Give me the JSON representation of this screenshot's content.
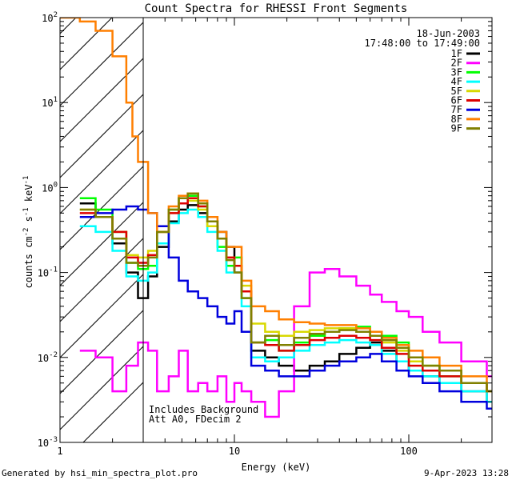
{
  "chart_data": {
    "type": "line",
    "title": "Count Spectra for RHESSI Front Segments",
    "xlabel": "Energy (keV)",
    "ylabel": {
      "base": "counts cm",
      "exp1": "-2",
      "mid": " s",
      "exp2": "-1",
      "unit": " keV",
      "exp3": "-1"
    },
    "xscale": "log",
    "yscale": "log",
    "xlim": [
      1,
      300
    ],
    "ylim": [
      0.001,
      100
    ],
    "x_ticks": [
      {
        "value": 1,
        "label": "1"
      },
      {
        "value": 10,
        "label": "10"
      },
      {
        "value": 100,
        "label": "100"
      }
    ],
    "y_ticks": [
      {
        "value": 0.001,
        "mant": "10",
        "exp": "-3"
      },
      {
        "value": 0.01,
        "mant": "10",
        "exp": "-2"
      },
      {
        "value": 0.1,
        "mant": "10",
        "exp": "-1"
      },
      {
        "value": 1,
        "mant": "10",
        "exp": "0"
      },
      {
        "value": 10,
        "mant": "10",
        "exp": "1"
      },
      {
        "value": 100,
        "mant": "10",
        "exp": "2"
      }
    ],
    "date": "18-Jun-2003",
    "time_range": "17:48:00 to 17:49:00",
    "note_lines": [
      "Includes Background",
      "Att A0, FDecim 2"
    ],
    "shaded_region_keV": [
      1,
      3
    ],
    "legend_position": "top-right",
    "series": [
      {
        "name": "1F",
        "color": "#000000",
        "energy_keV": [
          1.3,
          1.6,
          2.0,
          2.4,
          2.8,
          3.2,
          3.6,
          4.2,
          4.8,
          5.4,
          6.2,
          7.0,
          8.0,
          9.0,
          10.0,
          11.0,
          12.5,
          15,
          18,
          22,
          27,
          33,
          40,
          50,
          60,
          70,
          85,
          100,
          120,
          150,
          200,
          280
        ],
        "counts": [
          0.65,
          0.45,
          0.22,
          0.1,
          0.05,
          0.09,
          0.2,
          0.4,
          0.55,
          0.62,
          0.5,
          0.35,
          0.3,
          0.2,
          0.1,
          0.06,
          0.012,
          0.01,
          0.008,
          0.007,
          0.008,
          0.009,
          0.011,
          0.013,
          0.015,
          0.012,
          0.009,
          0.007,
          0.006,
          0.005,
          0.004,
          0.003
        ]
      },
      {
        "name": "2F",
        "color": "#ff00ff",
        "energy_keV": [
          1.3,
          1.6,
          2.0,
          2.4,
          2.8,
          3.2,
          3.6,
          4.2,
          4.8,
          5.4,
          6.2,
          7.0,
          8.0,
          9.0,
          10.0,
          11.0,
          12.5,
          15,
          18,
          22,
          27,
          33,
          40,
          50,
          60,
          70,
          85,
          100,
          120,
          150,
          200,
          280
        ],
        "counts": [
          0.012,
          0.01,
          0.004,
          0.008,
          0.015,
          0.012,
          0.004,
          0.006,
          0.012,
          0.004,
          0.005,
          0.004,
          0.006,
          0.003,
          0.005,
          0.004,
          0.003,
          0.002,
          0.004,
          0.04,
          0.1,
          0.11,
          0.09,
          0.07,
          0.055,
          0.045,
          0.035,
          0.03,
          0.02,
          0.015,
          0.009,
          0.006
        ]
      },
      {
        "name": "3F",
        "color": "#00ff00",
        "energy_keV": [
          1.3,
          1.6,
          2.0,
          2.4,
          2.8,
          3.2,
          3.6,
          4.2,
          4.8,
          5.4,
          6.2,
          7.0,
          8.0,
          9.0,
          10.0,
          11.0,
          12.5,
          15,
          18,
          22,
          27,
          33,
          40,
          50,
          60,
          70,
          85,
          100,
          120,
          150,
          200,
          280
        ],
        "counts": [
          0.75,
          0.55,
          0.3,
          0.13,
          0.11,
          0.12,
          0.3,
          0.55,
          0.75,
          0.8,
          0.6,
          0.35,
          0.2,
          0.12,
          0.15,
          0.05,
          0.015,
          0.016,
          0.012,
          0.015,
          0.018,
          0.02,
          0.022,
          0.023,
          0.02,
          0.018,
          0.015,
          0.01,
          0.008,
          0.006,
          0.005,
          0.004
        ]
      },
      {
        "name": "4F",
        "color": "#00ffff",
        "energy_keV": [
          1.3,
          1.6,
          2.0,
          2.4,
          2.8,
          3.2,
          3.6,
          4.2,
          4.8,
          5.4,
          6.2,
          7.0,
          8.0,
          9.0,
          10.0,
          11.0,
          12.5,
          15,
          18,
          22,
          27,
          33,
          40,
          50,
          60,
          70,
          85,
          100,
          120,
          150,
          200,
          280
        ],
        "counts": [
          0.35,
          0.3,
          0.18,
          0.09,
          0.08,
          0.1,
          0.22,
          0.38,
          0.5,
          0.55,
          0.45,
          0.3,
          0.18,
          0.1,
          0.1,
          0.04,
          0.01,
          0.009,
          0.01,
          0.012,
          0.014,
          0.015,
          0.016,
          0.015,
          0.014,
          0.011,
          0.009,
          0.007,
          0.006,
          0.005,
          0.004,
          0.003
        ]
      },
      {
        "name": "5F",
        "color": "#d8d800",
        "energy_keV": [
          1.3,
          1.6,
          2.0,
          2.4,
          2.8,
          3.2,
          3.6,
          4.2,
          4.8,
          5.4,
          6.2,
          7.0,
          8.0,
          9.0,
          10.0,
          11.0,
          12.5,
          15,
          18,
          22,
          27,
          33,
          40,
          50,
          60,
          70,
          85,
          100,
          120,
          150,
          200,
          280
        ],
        "counts": [
          0.55,
          0.45,
          0.3,
          0.16,
          0.15,
          0.18,
          0.3,
          0.5,
          0.65,
          0.7,
          0.55,
          0.35,
          0.25,
          0.15,
          0.12,
          0.07,
          0.025,
          0.02,
          0.018,
          0.02,
          0.021,
          0.022,
          0.022,
          0.02,
          0.018,
          0.015,
          0.012,
          0.009,
          0.008,
          0.007,
          0.005,
          0.004
        ]
      },
      {
        "name": "6F",
        "color": "#dd0000",
        "energy_keV": [
          1.3,
          1.6,
          2.0,
          2.4,
          2.8,
          3.2,
          3.6,
          4.2,
          4.8,
          5.4,
          6.2,
          7.0,
          8.0,
          9.0,
          10.0,
          11.0,
          12.5,
          15,
          18,
          22,
          27,
          33,
          40,
          50,
          60,
          70,
          85,
          100,
          120,
          150,
          200,
          280
        ],
        "counts": [
          0.5,
          0.45,
          0.3,
          0.15,
          0.13,
          0.16,
          0.3,
          0.5,
          0.65,
          0.75,
          0.6,
          0.4,
          0.25,
          0.15,
          0.12,
          0.06,
          0.015,
          0.014,
          0.012,
          0.014,
          0.016,
          0.017,
          0.018,
          0.017,
          0.016,
          0.013,
          0.011,
          0.008,
          0.007,
          0.006,
          0.005,
          0.004
        ]
      },
      {
        "name": "7F",
        "color": "#0000dd",
        "energy_keV": [
          1.3,
          1.6,
          2.0,
          2.4,
          2.8,
          3.2,
          3.6,
          4.2,
          4.8,
          5.4,
          6.2,
          7.0,
          8.0,
          9.0,
          10.0,
          11.0,
          12.5,
          15,
          18,
          22,
          27,
          33,
          40,
          50,
          60,
          70,
          85,
          100,
          120,
          150,
          200,
          280
        ],
        "counts": [
          0.45,
          0.5,
          0.55,
          0.6,
          0.55,
          0.5,
          0.35,
          0.15,
          0.08,
          0.06,
          0.05,
          0.04,
          0.03,
          0.025,
          0.035,
          0.02,
          0.008,
          0.007,
          0.006,
          0.006,
          0.007,
          0.008,
          0.009,
          0.01,
          0.011,
          0.009,
          0.007,
          0.006,
          0.005,
          0.004,
          0.003,
          0.0025
        ]
      },
      {
        "name": "8F",
        "color": "#ff7f00",
        "energy_keV": [
          1.0,
          1.3,
          1.6,
          2.0,
          2.4,
          2.6,
          2.8,
          3.2,
          3.6,
          4.2,
          4.8,
          5.4,
          6.2,
          7.0,
          8.0,
          9.0,
          10.0,
          11.0,
          12.5,
          15,
          18,
          22,
          27,
          33,
          40,
          50,
          60,
          70,
          85,
          100,
          120,
          150,
          200,
          280
        ],
        "counts": [
          100,
          90,
          70,
          35,
          10,
          4,
          2,
          0.5,
          0.3,
          0.6,
          0.8,
          0.85,
          0.7,
          0.45,
          0.3,
          0.2,
          0.2,
          0.08,
          0.04,
          0.035,
          0.028,
          0.026,
          0.025,
          0.024,
          0.024,
          0.022,
          0.02,
          0.017,
          0.014,
          0.012,
          0.01,
          0.008,
          0.006,
          0.004
        ]
      },
      {
        "name": "9F",
        "color": "#808000",
        "energy_keV": [
          1.3,
          1.6,
          2.0,
          2.4,
          2.8,
          3.2,
          3.6,
          4.2,
          4.8,
          5.4,
          6.2,
          7.0,
          8.0,
          9.0,
          10.0,
          11.0,
          12.5,
          15,
          18,
          22,
          27,
          33,
          40,
          50,
          60,
          70,
          85,
          100,
          120,
          150,
          200,
          280
        ],
        "counts": [
          0.55,
          0.45,
          0.25,
          0.13,
          0.12,
          0.15,
          0.3,
          0.55,
          0.75,
          0.85,
          0.65,
          0.4,
          0.25,
          0.14,
          0.1,
          0.05,
          0.015,
          0.018,
          0.014,
          0.017,
          0.019,
          0.02,
          0.021,
          0.02,
          0.018,
          0.016,
          0.013,
          0.01,
          0.008,
          0.007,
          0.005,
          0.004
        ]
      }
    ]
  },
  "footer": {
    "left": "Generated by hsi_min_spectra_plot.pro",
    "right": "9-Apr-2023 13:28"
  }
}
